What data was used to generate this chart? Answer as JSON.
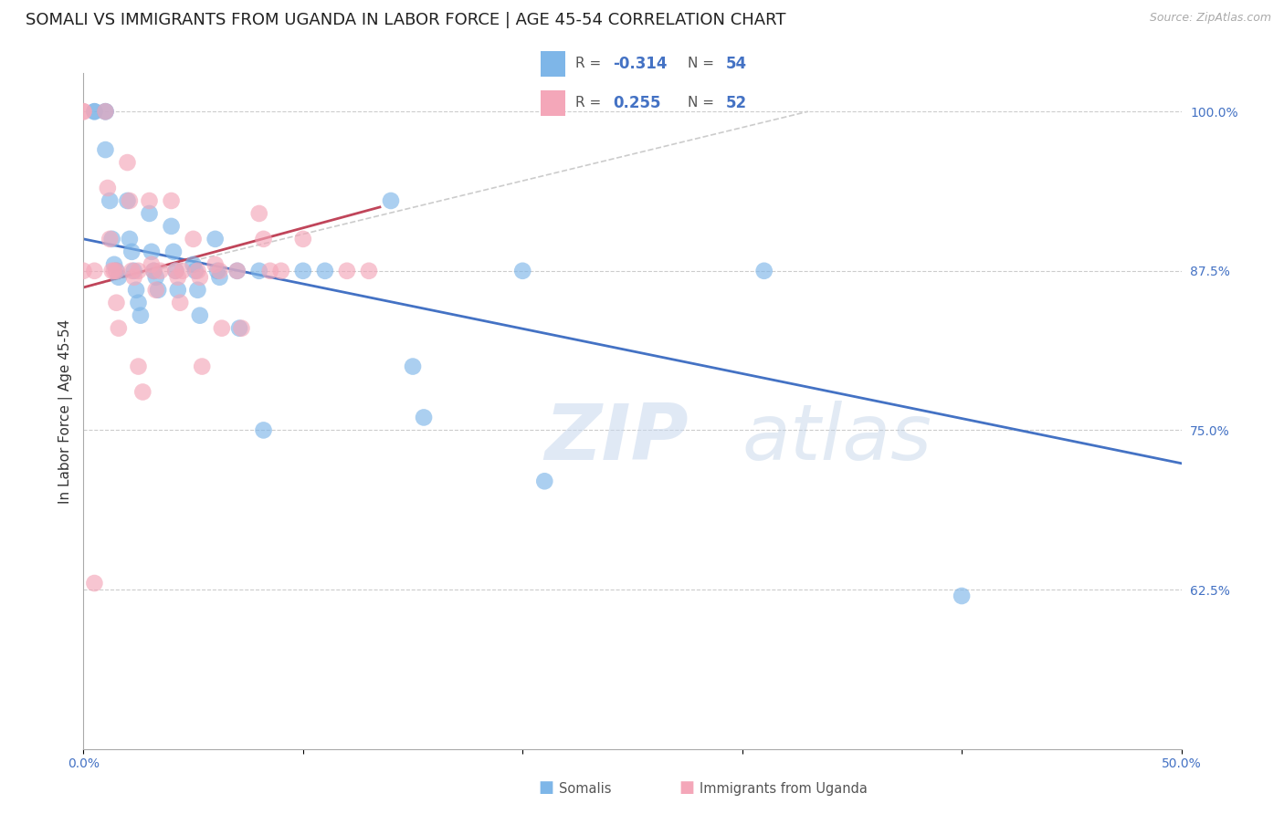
{
  "title": "SOMALI VS IMMIGRANTS FROM UGANDA IN LABOR FORCE | AGE 45-54 CORRELATION CHART",
  "source": "Source: ZipAtlas.com",
  "ylabel": "In Labor Force | Age 45-54",
  "xlim": [
    0.0,
    0.5
  ],
  "ylim": [
    0.5,
    1.03
  ],
  "x_ticks": [
    0.0,
    0.1,
    0.2,
    0.3,
    0.4,
    0.5
  ],
  "x_tick_labels": [
    "0.0%",
    "",
    "",
    "",
    "",
    "50.0%"
  ],
  "y_tick_labels_right": [
    "100.0%",
    "87.5%",
    "75.0%",
    "62.5%"
  ],
  "y_tick_vals_right": [
    1.0,
    0.875,
    0.75,
    0.625
  ],
  "somali_x": [
    0.005,
    0.005,
    0.01,
    0.01,
    0.01,
    0.012,
    0.013,
    0.014,
    0.015,
    0.016,
    0.02,
    0.021,
    0.022,
    0.023,
    0.024,
    0.025,
    0.026,
    0.03,
    0.031,
    0.032,
    0.033,
    0.034,
    0.04,
    0.041,
    0.042,
    0.043,
    0.05,
    0.051,
    0.052,
    0.053,
    0.06,
    0.061,
    0.062,
    0.07,
    0.071,
    0.08,
    0.082,
    0.1,
    0.11,
    0.14,
    0.15,
    0.155,
    0.2,
    0.21,
    0.31,
    0.4
  ],
  "somali_y": [
    1.0,
    1.0,
    1.0,
    1.0,
    0.97,
    0.93,
    0.9,
    0.88,
    0.875,
    0.87,
    0.93,
    0.9,
    0.89,
    0.875,
    0.86,
    0.85,
    0.84,
    0.92,
    0.89,
    0.875,
    0.87,
    0.86,
    0.91,
    0.89,
    0.875,
    0.86,
    0.88,
    0.875,
    0.86,
    0.84,
    0.9,
    0.875,
    0.87,
    0.875,
    0.83,
    0.875,
    0.75,
    0.875,
    0.875,
    0.93,
    0.8,
    0.76,
    0.875,
    0.71,
    0.875,
    0.62
  ],
  "uganda_x": [
    0.0,
    0.0,
    0.0,
    0.01,
    0.011,
    0.012,
    0.013,
    0.014,
    0.015,
    0.016,
    0.02,
    0.021,
    0.022,
    0.023,
    0.025,
    0.027,
    0.03,
    0.031,
    0.032,
    0.033,
    0.04,
    0.042,
    0.043,
    0.044,
    0.05,
    0.052,
    0.053,
    0.054,
    0.06,
    0.062,
    0.063,
    0.07,
    0.072,
    0.08,
    0.082,
    0.085,
    0.09,
    0.1,
    0.12,
    0.13,
    0.005,
    0.005,
    0.015,
    0.025,
    0.035,
    0.045
  ],
  "uganda_y": [
    1.0,
    1.0,
    0.875,
    1.0,
    0.94,
    0.9,
    0.875,
    0.875,
    0.85,
    0.83,
    0.96,
    0.93,
    0.875,
    0.87,
    0.8,
    0.78,
    0.93,
    0.88,
    0.875,
    0.86,
    0.93,
    0.875,
    0.87,
    0.85,
    0.9,
    0.875,
    0.87,
    0.8,
    0.88,
    0.875,
    0.83,
    0.875,
    0.83,
    0.92,
    0.9,
    0.875,
    0.875,
    0.9,
    0.875,
    0.875,
    0.875,
    0.63,
    0.875,
    0.875,
    0.875,
    0.875
  ],
  "somali_line_x": [
    0.0,
    0.5
  ],
  "somali_line_y": [
    0.9,
    0.724
  ],
  "uganda_line_x": [
    0.0,
    0.135
  ],
  "uganda_line_y": [
    0.862,
    0.925
  ],
  "diagonal_line_x": [
    0.0,
    0.33
  ],
  "diagonal_line_y": [
    0.862,
    1.0
  ],
  "background_color": "#ffffff",
  "grid_color": "#cccccc",
  "somali_color": "#7eb6e8",
  "uganda_color": "#f4a7b9",
  "somali_line_color": "#4472C4",
  "uganda_line_color": "#C0455A",
  "diagonal_line_color": "#cccccc",
  "watermark_zip": "ZIP",
  "watermark_atlas": "atlas",
  "title_fontsize": 13,
  "axis_label_fontsize": 11,
  "tick_fontsize": 10
}
